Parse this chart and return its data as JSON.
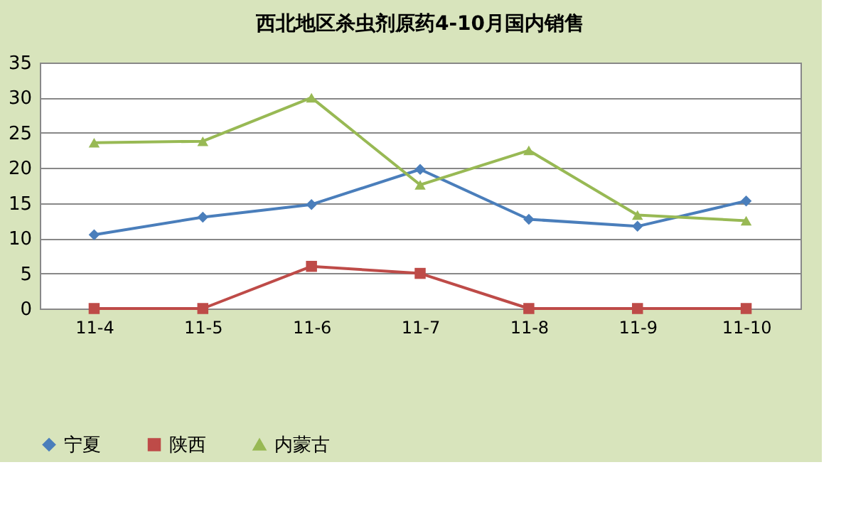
{
  "chart_data": {
    "type": "line",
    "title": "西北地区杀虫剂原药4-10月国内销售",
    "categories": [
      "11-4",
      "11-5",
      "11-6",
      "11-7",
      "11-8",
      "11-9",
      "11-10"
    ],
    "series": [
      {
        "name": "宁夏",
        "color": "#4a7ebb",
        "marker": "diamond",
        "values": [
          10.5,
          13,
          14.8,
          19.8,
          12.7,
          11.7,
          15.3
        ]
      },
      {
        "name": "陕西",
        "color": "#be4b48",
        "marker": "square",
        "values": [
          0,
          0,
          6,
          5,
          0,
          0,
          0
        ]
      },
      {
        "name": "内蒙古",
        "color": "#98b954",
        "marker": "triangle",
        "values": [
          23.6,
          23.8,
          30,
          17.6,
          22.5,
          13.3,
          12.5
        ]
      }
    ],
    "ylim": [
      0,
      35
    ],
    "yticks": [
      0,
      5,
      10,
      15,
      20,
      25,
      30,
      35
    ],
    "grid": "y",
    "legend": "bottom",
    "line_style": "solid"
  }
}
